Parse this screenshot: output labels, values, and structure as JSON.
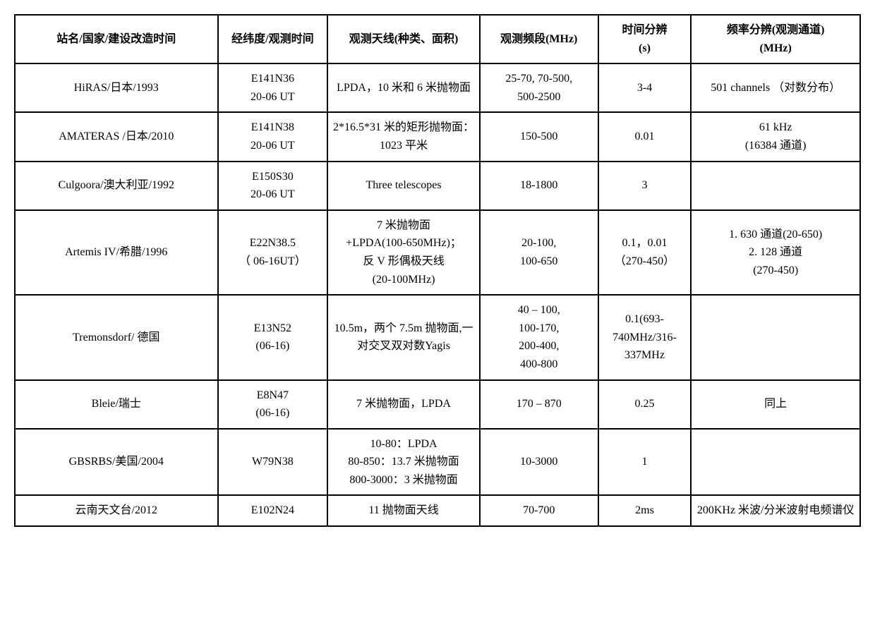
{
  "table": {
    "border_color": "#000000",
    "border_width": 2,
    "background_color": "#ffffff",
    "font_family": "SimSun",
    "header_fontsize": 16,
    "cell_fontsize": 16,
    "column_widths_pct": [
      24,
      13,
      18,
      14,
      11,
      20
    ],
    "columns": [
      "站名/国家/建设改造时间",
      "经纬度/观测时间",
      "观测天线(种类、面积)",
      "观测频段(MHz)",
      "时间分辨\n(s)",
      "频率分辨(观测通道)\n(MHz)"
    ],
    "rows": [
      {
        "c0": "HiRAS/日本/1993",
        "c1": "E141N36\n20-06 UT",
        "c2": "LPDA，10 米和 6 米抛物面",
        "c3": "25-70, 70-500,\n500-2500",
        "c4": "3-4",
        "c5": "501 channels （对数分布）"
      },
      {
        "c0": "AMATERAS /日本/2010",
        "c1": "E141N38\n20-06 UT",
        "c2": "2*16.5*31 米的矩形抛物面：1023 平米",
        "c3": "150-500",
        "c4": "0.01",
        "c5": "61 kHz\n(16384 通道)"
      },
      {
        "c0": "Culgoora/澳大利亚/1992",
        "c1": "E150S30\n20-06 UT",
        "c2": "Three telescopes",
        "c3": "18-1800",
        "c4": "3",
        "c5": ""
      },
      {
        "c0": "Artemis IV/希腊/1996",
        "c1": "E22N38.5\n（ 06-16UT）",
        "c2": "7 米抛物面\n+LPDA(100-650MHz)；\n反 V 形偶极天线\n(20-100MHz)",
        "c3": "20-100,\n100-650",
        "c4": "0.1，0.01\n（270-450）",
        "c5": "1. 630 通道(20-650)\n2. 128 通道\n(270-450)"
      },
      {
        "c0": "Tremonsdorf/ 德国",
        "c1": "E13N52\n(06-16)",
        "c2": "10.5m，两个 7.5m 抛物面,一对交叉双对数Yagis",
        "c3": "40 – 100,\n100-170,\n200-400,\n400-800",
        "c4": "0.1(693-740MHz/316-337MHz",
        "c5": ""
      },
      {
        "c0": "Bleie/瑞士",
        "c1": "E8N47\n(06-16)",
        "c2": "7 米抛物面，LPDA",
        "c3": "170 – 870",
        "c4": "0.25",
        "c5": "同上"
      },
      {
        "c0": "GBSRBS/美国/2004",
        "c1": "W79N38",
        "c2": "10-80：LPDA\n80-850：13.7 米抛物面\n800-3000：3 米抛物面",
        "c3": "10-3000",
        "c4": "1",
        "c5": ""
      },
      {
        "c0": "云南天文台/2012",
        "c1": "E102N24",
        "c2": "11 抛物面天线",
        "c3": "70-700",
        "c4": "2ms",
        "c5": "200KHz 米波/分米波射电频谱仪"
      }
    ]
  }
}
